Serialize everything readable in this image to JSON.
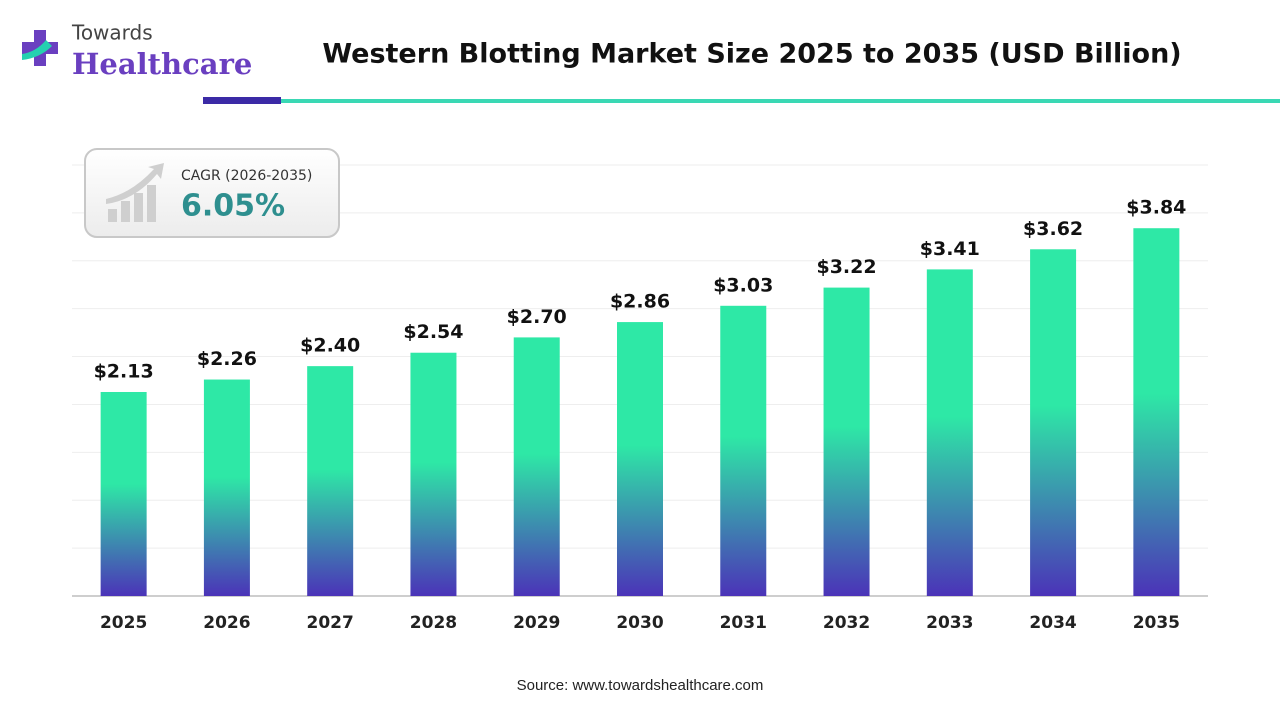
{
  "logo": {
    "line1": "Towards",
    "line2": "Healthcare"
  },
  "chart_data": {
    "type": "bar",
    "title": "Western Blotting Market Size 2025 to 2035 (USD Billion)",
    "categories": [
      "2025",
      "2026",
      "2027",
      "2028",
      "2029",
      "2030",
      "2031",
      "2032",
      "2033",
      "2034",
      "2035"
    ],
    "values": [
      2.13,
      2.26,
      2.4,
      2.54,
      2.7,
      2.86,
      3.03,
      3.22,
      3.41,
      3.62,
      3.84
    ],
    "value_labels": [
      "$2.13",
      "$2.26",
      "$2.40",
      "$2.54",
      "$2.70",
      "$2.86",
      "$3.03",
      "$3.22",
      "$3.41",
      "$3.62",
      "$3.84"
    ],
    "colors": [
      "#2ee8a6",
      "#4b33b8"
    ],
    "ylim": [
      0,
      4.5
    ],
    "yticks": [
      0,
      0.5,
      1,
      1.5,
      2,
      2.5,
      3,
      3.5,
      4,
      4.5
    ],
    "grid": true,
    "annotation": {
      "label": "CAGR (2026-2035)",
      "value": "6.05%"
    },
    "source": "Source: www.towardshealthcare.com"
  }
}
